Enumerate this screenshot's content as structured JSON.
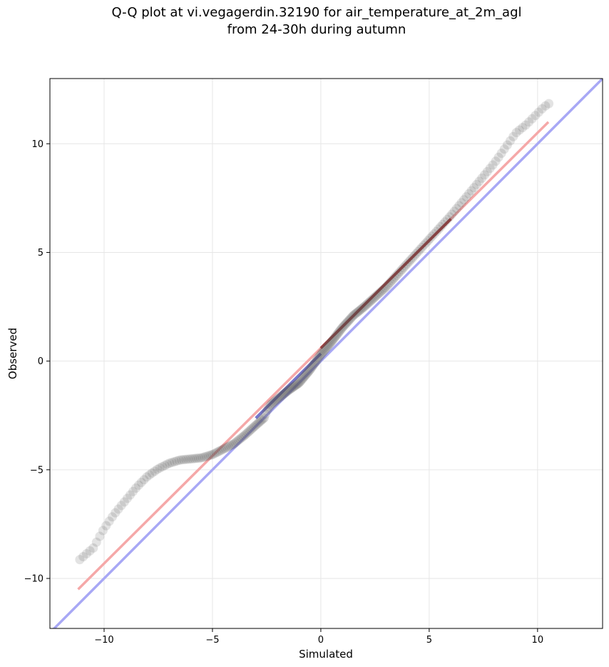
{
  "chart_data": {
    "type": "scatter",
    "title_line1": "Q-Q plot at vi.vegagerdin.32190 for air_temperature_at_2m_agl",
    "title_line2": "from 24-30h during autumn",
    "xlabel": "Simulated",
    "ylabel": "Observed",
    "xlim": [
      -12.5,
      13.0
    ],
    "ylim": [
      -12.3,
      13.0
    ],
    "xticks": [
      -10,
      -5,
      0,
      5,
      10
    ],
    "yticks": [
      -10,
      -5,
      0,
      5,
      10
    ],
    "xtick_labels": [
      "−10",
      "−5",
      "0",
      "5",
      "10"
    ],
    "ytick_labels": [
      "−10",
      "−5",
      "0",
      "5",
      "10"
    ],
    "grid": true,
    "quantile_curve": [
      [
        -11.2,
        -9.2
      ],
      [
        -10.5,
        -8.6
      ],
      [
        -10.0,
        -7.7
      ],
      [
        -9.5,
        -7.0
      ],
      [
        -9.0,
        -6.4
      ],
      [
        -8.5,
        -5.8
      ],
      [
        -8.0,
        -5.3
      ],
      [
        -7.5,
        -4.95
      ],
      [
        -7.0,
        -4.7
      ],
      [
        -6.5,
        -4.55
      ],
      [
        -6.0,
        -4.5
      ],
      [
        -5.5,
        -4.45
      ],
      [
        -5.0,
        -4.3
      ],
      [
        -4.5,
        -4.05
      ],
      [
        -4.0,
        -3.8
      ],
      [
        -3.5,
        -3.4
      ],
      [
        -3.0,
        -2.95
      ],
      [
        -2.6,
        -2.6
      ],
      [
        -2.5,
        -2.3
      ],
      [
        -2.3,
        -2.0
      ],
      [
        -2.0,
        -1.75
      ],
      [
        -1.5,
        -1.35
      ],
      [
        -1.0,
        -1.0
      ],
      [
        -0.5,
        -0.4
      ],
      [
        0.0,
        0.3
      ],
      [
        0.5,
        0.9
      ],
      [
        1.0,
        1.55
      ],
      [
        1.5,
        2.1
      ],
      [
        2.0,
        2.5
      ],
      [
        3.0,
        3.4
      ],
      [
        4.0,
        4.5
      ],
      [
        5.0,
        5.6
      ],
      [
        6.0,
        6.7
      ],
      [
        7.0,
        7.9
      ],
      [
        8.0,
        9.1
      ],
      [
        8.5,
        9.8
      ],
      [
        9.0,
        10.5
      ],
      [
        9.5,
        10.9
      ],
      [
        10.0,
        11.4
      ],
      [
        10.3,
        11.7
      ],
      [
        10.6,
        11.9
      ]
    ],
    "colored_segment_blue": [
      -3.0,
      0.0
    ],
    "colored_segment_red": [
      0.0,
      6.0
    ],
    "identity_line": {
      "x": [
        -12.5,
        13.0
      ],
      "y": [
        -12.5,
        13.0
      ],
      "color": "#a8a8f5"
    },
    "fit_line": {
      "x": [
        -11.2,
        10.5
      ],
      "y": [
        -10.5,
        11.0
      ],
      "color": "#f5a8a8"
    },
    "marker_color": "#505050"
  }
}
